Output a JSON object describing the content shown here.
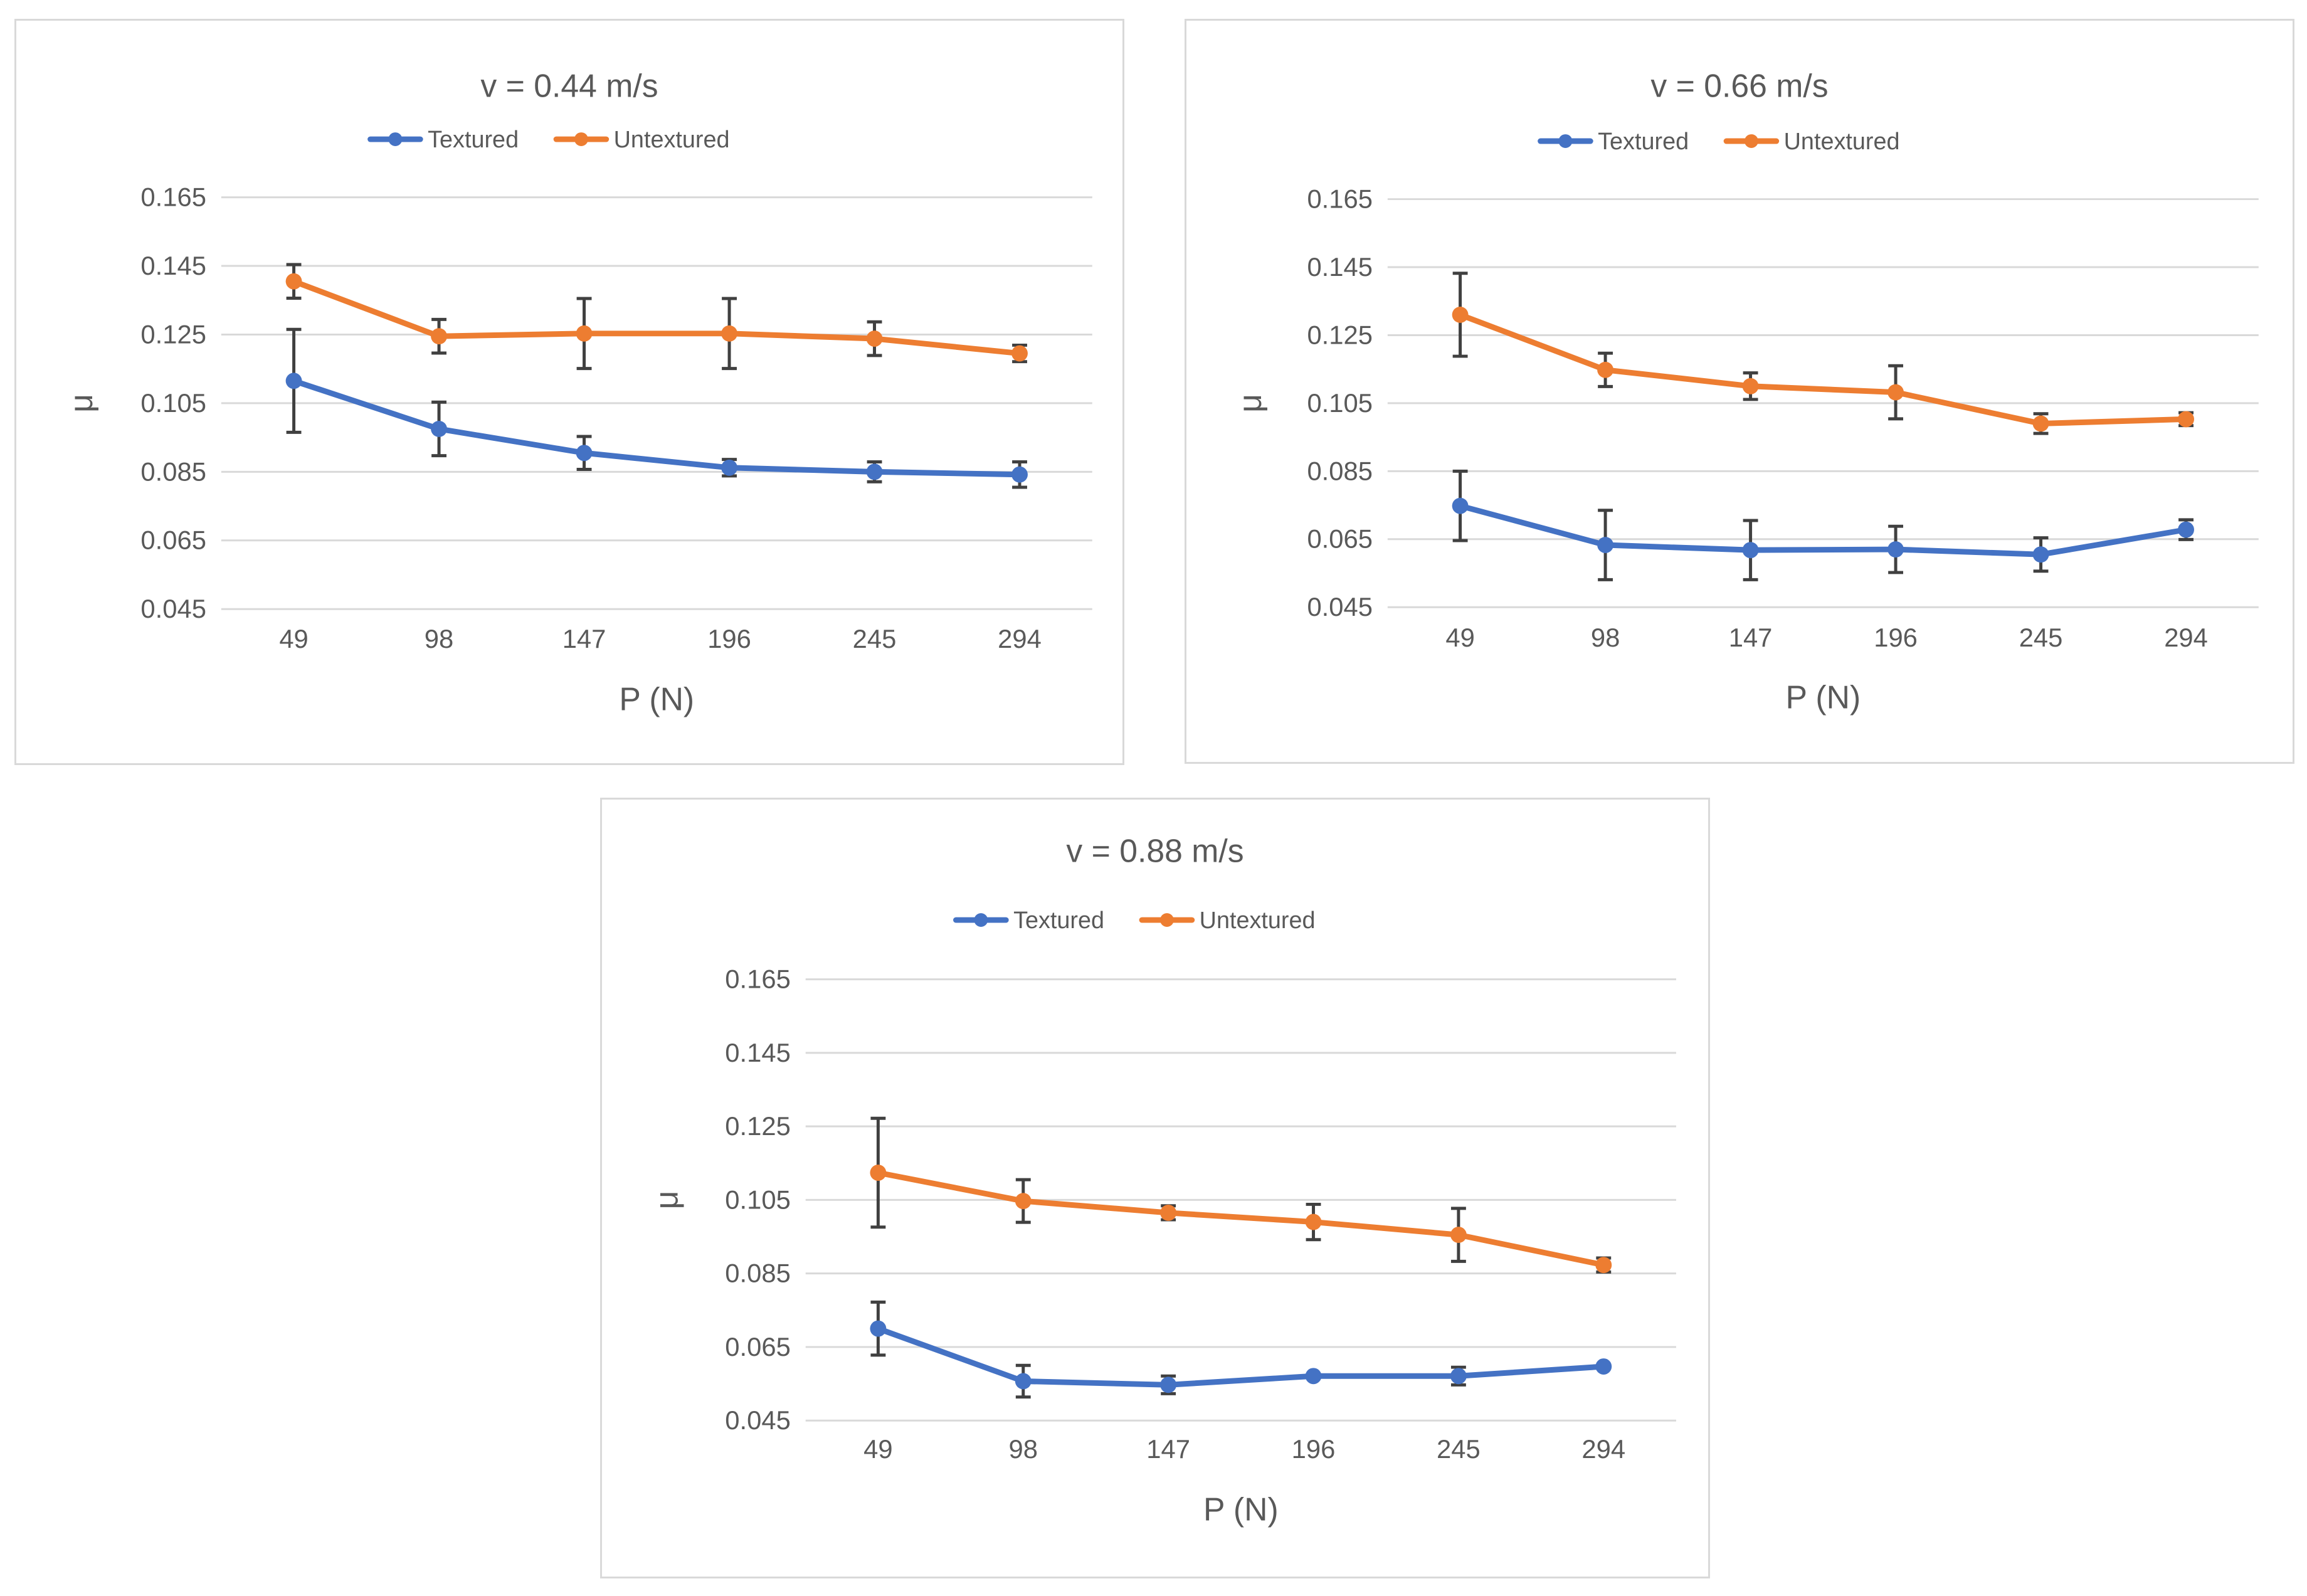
{
  "colors": {
    "textured": "#4472c4",
    "untextured": "#ed7d31",
    "error_bar": "#404040",
    "grid": "#d9d9d9",
    "text": "#595959"
  },
  "chart_data": [
    {
      "type": "line",
      "title": "v = 0.44 m/s",
      "xlabel": "P (N)",
      "ylabel": "μ",
      "categories": [
        "49",
        "98",
        "147",
        "196",
        "245",
        "294"
      ],
      "yticks": [
        "0.045",
        "0.065",
        "0.085",
        "0.105",
        "0.125",
        "0.145",
        "0.165"
      ],
      "ylim": [
        0.045,
        0.165
      ],
      "legend_position": "top",
      "grid": true,
      "series": [
        {
          "name": "Textured",
          "color": "#4472c4",
          "values": [
            0.1115,
            0.0975,
            0.0905,
            0.0862,
            0.085,
            0.0842
          ],
          "errors": [
            0.015,
            0.0078,
            0.0048,
            0.0024,
            0.0029,
            0.0037
          ]
        },
        {
          "name": "Untextured",
          "color": "#ed7d31",
          "values": [
            0.1405,
            0.1245,
            0.1253,
            0.1253,
            0.1238,
            0.1195
          ],
          "errors": [
            0.0049,
            0.0049,
            0.0102,
            0.0102,
            0.0049,
            0.0024
          ]
        }
      ]
    },
    {
      "type": "line",
      "title": "v = 0.66 m/s",
      "xlabel": "P (N)",
      "ylabel": "μ",
      "categories": [
        "49",
        "98",
        "147",
        "196",
        "245",
        "294"
      ],
      "yticks": [
        "0.045",
        "0.065",
        "0.085",
        "0.105",
        "0.125",
        "0.145",
        "0.165"
      ],
      "ylim": [
        0.045,
        0.165
      ],
      "legend_position": "top",
      "grid": true,
      "series": [
        {
          "name": "Textured",
          "color": "#4472c4",
          "values": [
            0.0748,
            0.0633,
            0.0618,
            0.062,
            0.0605,
            0.0678
          ],
          "errors": [
            0.0102,
            0.0102,
            0.0087,
            0.0068,
            0.0049,
            0.0029
          ]
        },
        {
          "name": "Untextured",
          "color": "#ed7d31",
          "values": [
            0.131,
            0.1148,
            0.11,
            0.1082,
            0.099,
            0.1003
          ],
          "errors": [
            0.0122,
            0.0049,
            0.0039,
            0.0078,
            0.0029,
            0.0019
          ]
        }
      ]
    },
    {
      "type": "line",
      "title": "v = 0.88 m/s",
      "xlabel": "P (N)",
      "ylabel": "μ",
      "categories": [
        "49",
        "98",
        "147",
        "196",
        "245",
        "294"
      ],
      "yticks": [
        "0.045",
        "0.065",
        "0.085",
        "0.105",
        "0.125",
        "0.145",
        "0.165"
      ],
      "ylim": [
        0.045,
        0.165
      ],
      "legend_position": "top",
      "grid": true,
      "series": [
        {
          "name": "Textured",
          "color": "#4472c4",
          "values": [
            0.07,
            0.0557,
            0.0547,
            0.0571,
            0.0571,
            0.0597
          ],
          "errors": [
            0.0072,
            0.0043,
            0.0024,
            0.0,
            0.0024,
            0.0
          ]
        },
        {
          "name": "Untextured",
          "color": "#ed7d31",
          "values": [
            0.1124,
            0.1047,
            0.1015,
            0.099,
            0.0955,
            0.0873
          ],
          "errors": [
            0.0148,
            0.0058,
            0.0019,
            0.0048,
            0.0072,
            0.0019
          ]
        }
      ]
    }
  ]
}
